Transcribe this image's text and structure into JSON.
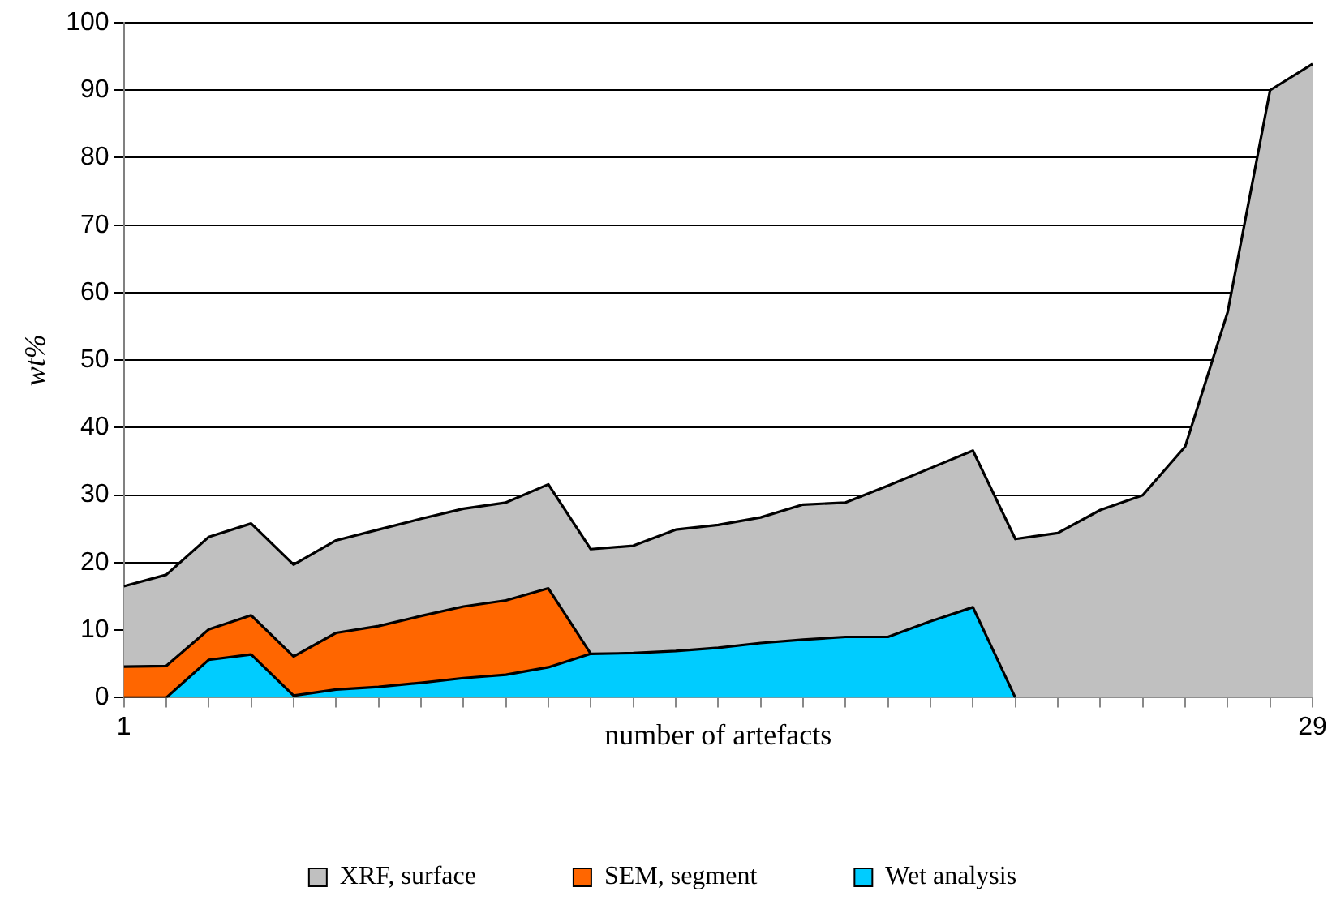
{
  "chart_data": {
    "type": "area",
    "xlabel": "number of artefacts",
    "ylabel": "wt%",
    "x": [
      1,
      2,
      3,
      4,
      5,
      6,
      7,
      8,
      9,
      10,
      11,
      12,
      13,
      14,
      15,
      16,
      17,
      18,
      19,
      20,
      21,
      22,
      23,
      24,
      25,
      26,
      27,
      28,
      29
    ],
    "series": [
      {
        "name": "XRF, surface",
        "color": "#c0c0c0",
        "values": [
          16.5,
          18.2,
          23.8,
          25.8,
          19.7,
          23.3,
          24.9,
          26.5,
          28,
          28.9,
          31.6,
          22,
          22.5,
          24.9,
          25.6,
          26.7,
          28.6,
          28.9,
          31.4,
          34,
          36.6,
          23.5,
          24.4,
          27.8,
          30,
          37.2,
          57.1,
          90,
          93.9
        ]
      },
      {
        "name": "SEM, segment",
        "color": "#ff6600",
        "values": [
          4.6,
          4.7,
          10.1,
          12.2,
          6.1,
          9.6,
          10.6,
          12.1,
          13.5,
          14.4,
          16.2,
          6.5,
          null,
          null,
          null,
          null,
          null,
          null,
          null,
          null,
          null,
          null,
          null,
          null,
          null,
          null,
          null,
          null,
          null
        ]
      },
      {
        "name": "Wet analysis",
        "color": "#00ccff",
        "values": [
          0,
          0,
          5.6,
          6.4,
          0.3,
          1.2,
          1.6,
          2.2,
          2.9,
          3.4,
          4.5,
          6.5,
          6.6,
          6.9,
          7.4,
          8.1,
          8.6,
          9,
          9,
          11.3,
          13.4,
          0,
          null,
          null,
          null,
          null,
          null,
          null,
          null
        ]
      }
    ],
    "xlim": [
      1,
      29
    ],
    "xticks": [
      1,
      {
        "value": 2,
        "label": null
      },
      {
        "value": 3,
        "label": null
      },
      {
        "value": 4,
        "label": null
      },
      {
        "value": 5,
        "label": null
      },
      {
        "value": 6,
        "label": null
      },
      {
        "value": 7,
        "label": null
      },
      {
        "value": 8,
        "label": null
      },
      {
        "value": 9,
        "label": null
      },
      {
        "value": 10,
        "label": null
      },
      {
        "value": 11,
        "label": null
      },
      {
        "value": 12,
        "label": null
      },
      {
        "value": 13,
        "label": null
      },
      {
        "value": 14,
        "label": null
      },
      {
        "value": 15,
        "label": null
      },
      {
        "value": 16,
        "label": null
      },
      {
        "value": 17,
        "label": null
      },
      {
        "value": 18,
        "label": null
      },
      {
        "value": 19,
        "label": null
      },
      {
        "value": 20,
        "label": null
      },
      {
        "value": 21,
        "label": null
      },
      {
        "value": 22,
        "label": null
      },
      {
        "value": 23,
        "label": null
      },
      {
        "value": 24,
        "label": null
      },
      {
        "value": 25,
        "label": null
      },
      {
        "value": 26,
        "label": null
      },
      {
        "value": 27,
        "label": null
      },
      {
        "value": 28,
        "label": null
      },
      29
    ],
    "ylim": [
      0,
      100
    ],
    "yticks": [
      0,
      10,
      20,
      30,
      40,
      50,
      60,
      70,
      80,
      90,
      100
    ],
    "grid": "y",
    "legend": "bottom",
    "marker": "none"
  }
}
